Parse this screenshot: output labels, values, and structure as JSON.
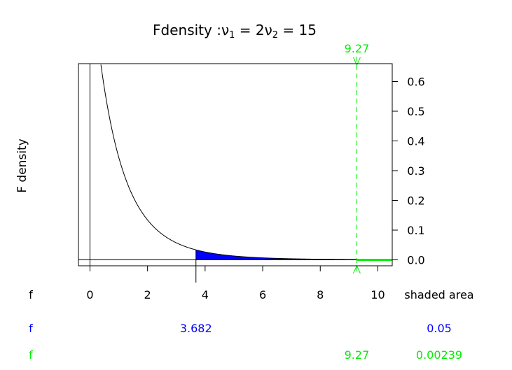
{
  "chart_data": {
    "type": "area",
    "title_main": "Fdensity :",
    "title_nu": "ν",
    "title_nu1_sub": "1",
    "title_eq1": " = 2",
    "title_nu2_sub": "2",
    "title_eq2": " = 15",
    "ylabel": "F density",
    "xlim": [
      -0.4,
      10.5
    ],
    "ylim": [
      -0.02,
      0.66
    ],
    "df1": 2,
    "df2": 15,
    "x_ticks": [
      "0",
      "2",
      "4",
      "6",
      "8",
      "10"
    ],
    "y_ticks": [
      "0.0",
      "0.1",
      "0.2",
      "0.3",
      "0.4",
      "0.5",
      "0.6"
    ],
    "x_axis_row_label": "f",
    "x_axis_right_label": "shaded area",
    "critical_value": 3.682,
    "observed_value": 9.27,
    "observed_label": "9.27",
    "rows": [
      {
        "label": "f",
        "f_value": "3.682",
        "area": "0.05",
        "color": "#0000ff"
      },
      {
        "label": "f",
        "f_value": "9.27",
        "area": "0.00239",
        "color": "#00ee00"
      }
    ],
    "colors": {
      "shade": "#0000ff",
      "observed": "#00ee00",
      "curve": "#000000"
    }
  }
}
